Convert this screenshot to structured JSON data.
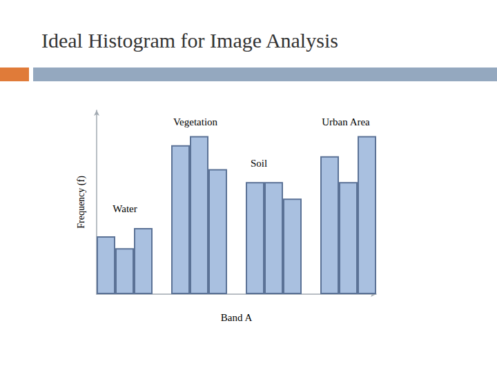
{
  "chart_data": {
    "type": "bar",
    "title": "Ideal Histogram for Image Analysis",
    "x_label": "Band A",
    "y_label": "Frequency (f)",
    "annotations": [
      "Water",
      "Vegetation",
      "Soil",
      "Urban Area"
    ],
    "categories": [
      null,
      null,
      null,
      null,
      null,
      null,
      null,
      null,
      null,
      null,
      null,
      null,
      null,
      null,
      null
    ],
    "values": [
      31.5,
      25,
      36,
      null,
      81,
      86,
      68,
      null,
      61,
      61,
      52,
      null,
      75,
      61,
      86
    ],
    "color": "#a9c0e0",
    "ylim": [
      0,
      100
    ],
    "yticks": [],
    "grid": false,
    "tick_labels": false
  }
}
